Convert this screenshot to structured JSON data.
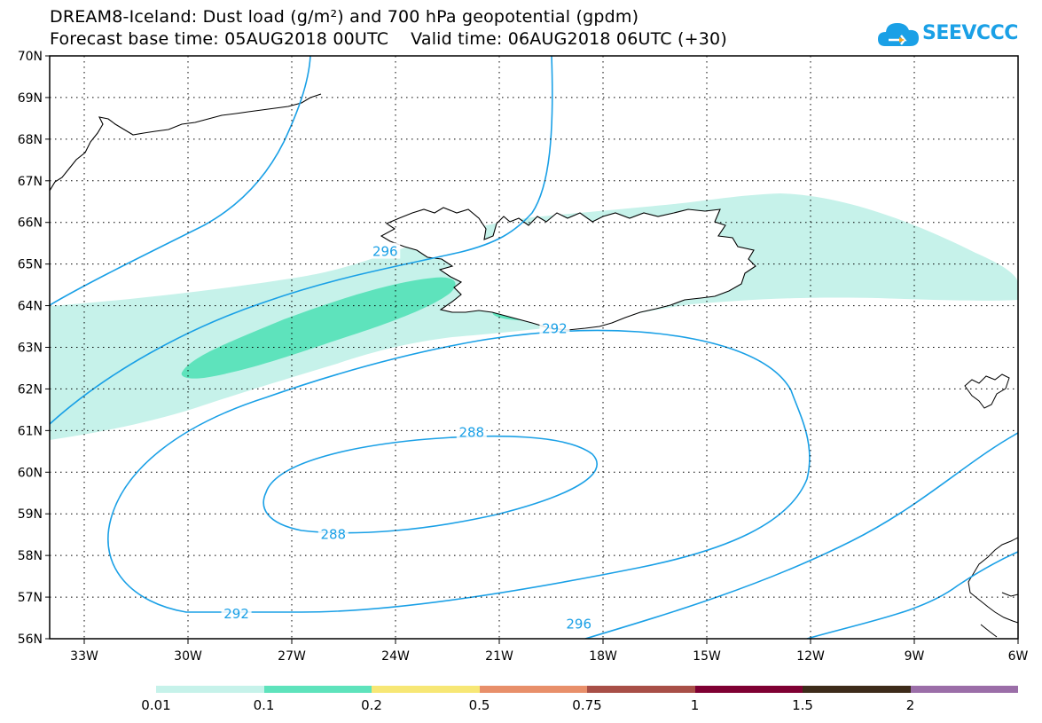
{
  "header": {
    "title_line1": "DREAM8-Iceland: Dust load (g/m²) and 700 hPa geopotential (gpdm)",
    "title_line2": "Forecast base time: 05AUG2018 00UTC    Valid time: 06AUG2018 06UTC (+30)"
  },
  "logo": {
    "text": "SEEVCCC",
    "icon": "cloud-logo-icon",
    "color": "#1aa0e6"
  },
  "map": {
    "projection": "lat-lon",
    "lon_range": [
      -34,
      -6
    ],
    "lat_range": [
      56,
      70
    ],
    "grid": "dotted",
    "lon_ticks": [
      {
        "value": -33,
        "label": "33W"
      },
      {
        "value": -30,
        "label": "30W"
      },
      {
        "value": -27,
        "label": "27W"
      },
      {
        "value": -24,
        "label": "24W"
      },
      {
        "value": -21,
        "label": "21W"
      },
      {
        "value": -18,
        "label": "18W"
      },
      {
        "value": -15,
        "label": "15W"
      },
      {
        "value": -12,
        "label": "12W"
      },
      {
        "value": -9,
        "label": "9W"
      },
      {
        "value": -6,
        "label": "6W"
      }
    ],
    "lat_ticks": [
      {
        "value": 70,
        "label": "70N"
      },
      {
        "value": 69,
        "label": "69N"
      },
      {
        "value": 68,
        "label": "68N"
      },
      {
        "value": 67,
        "label": "67N"
      },
      {
        "value": 66,
        "label": "66N"
      },
      {
        "value": 65,
        "label": "65N"
      },
      {
        "value": 64,
        "label": "64N"
      },
      {
        "value": 63,
        "label": "63N"
      },
      {
        "value": 62,
        "label": "62N"
      },
      {
        "value": 61,
        "label": "61N"
      },
      {
        "value": 60,
        "label": "60N"
      },
      {
        "value": 59,
        "label": "59N"
      },
      {
        "value": 58,
        "label": "58N"
      },
      {
        "value": 57,
        "label": "57N"
      },
      {
        "value": 56,
        "label": "56N"
      }
    ],
    "contour_color": "#1aa0e6",
    "contour_labels": [
      {
        "text": "296",
        "lon": -24.3,
        "lat": 65.3
      },
      {
        "text": "292",
        "lon": -19.4,
        "lat": 63.45
      },
      {
        "text": "288",
        "lon": -21.8,
        "lat": 60.95
      },
      {
        "text": "288",
        "lon": -25.8,
        "lat": 58.5
      },
      {
        "text": "292",
        "lon": -28.6,
        "lat": 56.6
      },
      {
        "text": "296",
        "lon": -18.7,
        "lat": 56.35
      }
    ],
    "dust_colors": {
      "0.01": "#c6f2ea",
      "0.1": "#5ee3bc"
    }
  },
  "colorbar": {
    "labels": [
      {
        "text": "0.01",
        "pos": 0
      },
      {
        "text": "0.1",
        "pos": 1
      },
      {
        "text": "0.2",
        "pos": 2
      },
      {
        "text": "0.5",
        "pos": 3
      },
      {
        "text": "0.75",
        "pos": 4
      },
      {
        "text": "1",
        "pos": 5
      },
      {
        "text": "1.5",
        "pos": 6
      },
      {
        "text": "2",
        "pos": 7
      }
    ],
    "colors": [
      "#c6f2ea",
      "#5ee3bc",
      "#f7e775",
      "#e88f6a",
      "#a84f47",
      "#7f0033",
      "#3d2b1a",
      "#9b6ea8"
    ]
  }
}
